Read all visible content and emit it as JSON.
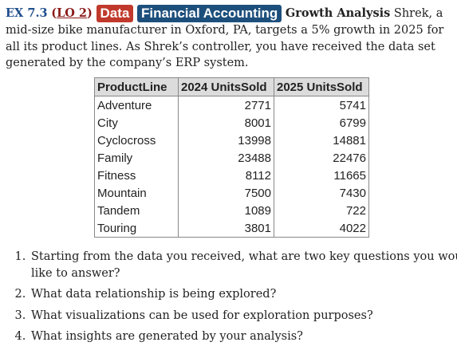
{
  "exercise": {
    "label": "EX 7.3",
    "lo_open": "(",
    "lo": "LO 2",
    "lo_close": ")",
    "badges": [
      "Data",
      "Financial Accounting"
    ],
    "topic": "Growth Analysis",
    "intro_text": "Shrek, a mid-size bike manufacturer in Oxford, PA, targets a 5% growth in 2025 for all its product lines. As Shrek’s controller, you have received the data set generated by the company’s ERP system."
  },
  "table": {
    "headers": [
      "ProductLine",
      "2024 UnitsSold",
      "2025 UnitsSold"
    ],
    "rows": [
      [
        "Adventure",
        "2771",
        "5741"
      ],
      [
        "City",
        "8001",
        "6799"
      ],
      [
        "Cyclocross",
        "13998",
        "14881"
      ],
      [
        "Family",
        "23488",
        "22476"
      ],
      [
        "Fitness",
        "8112",
        "11665"
      ],
      [
        "Mountain",
        "7500",
        "7430"
      ],
      [
        "Tandem",
        "1089",
        "722"
      ],
      [
        "Touring",
        "3801",
        "4022"
      ]
    ]
  },
  "questions": [
    "Starting from the data you received, what are two key questions you would like to answer?",
    "What data relationship is being explored?",
    "What visualizations can be used for exploration purposes?",
    "What insights are generated by your analysis?"
  ]
}
